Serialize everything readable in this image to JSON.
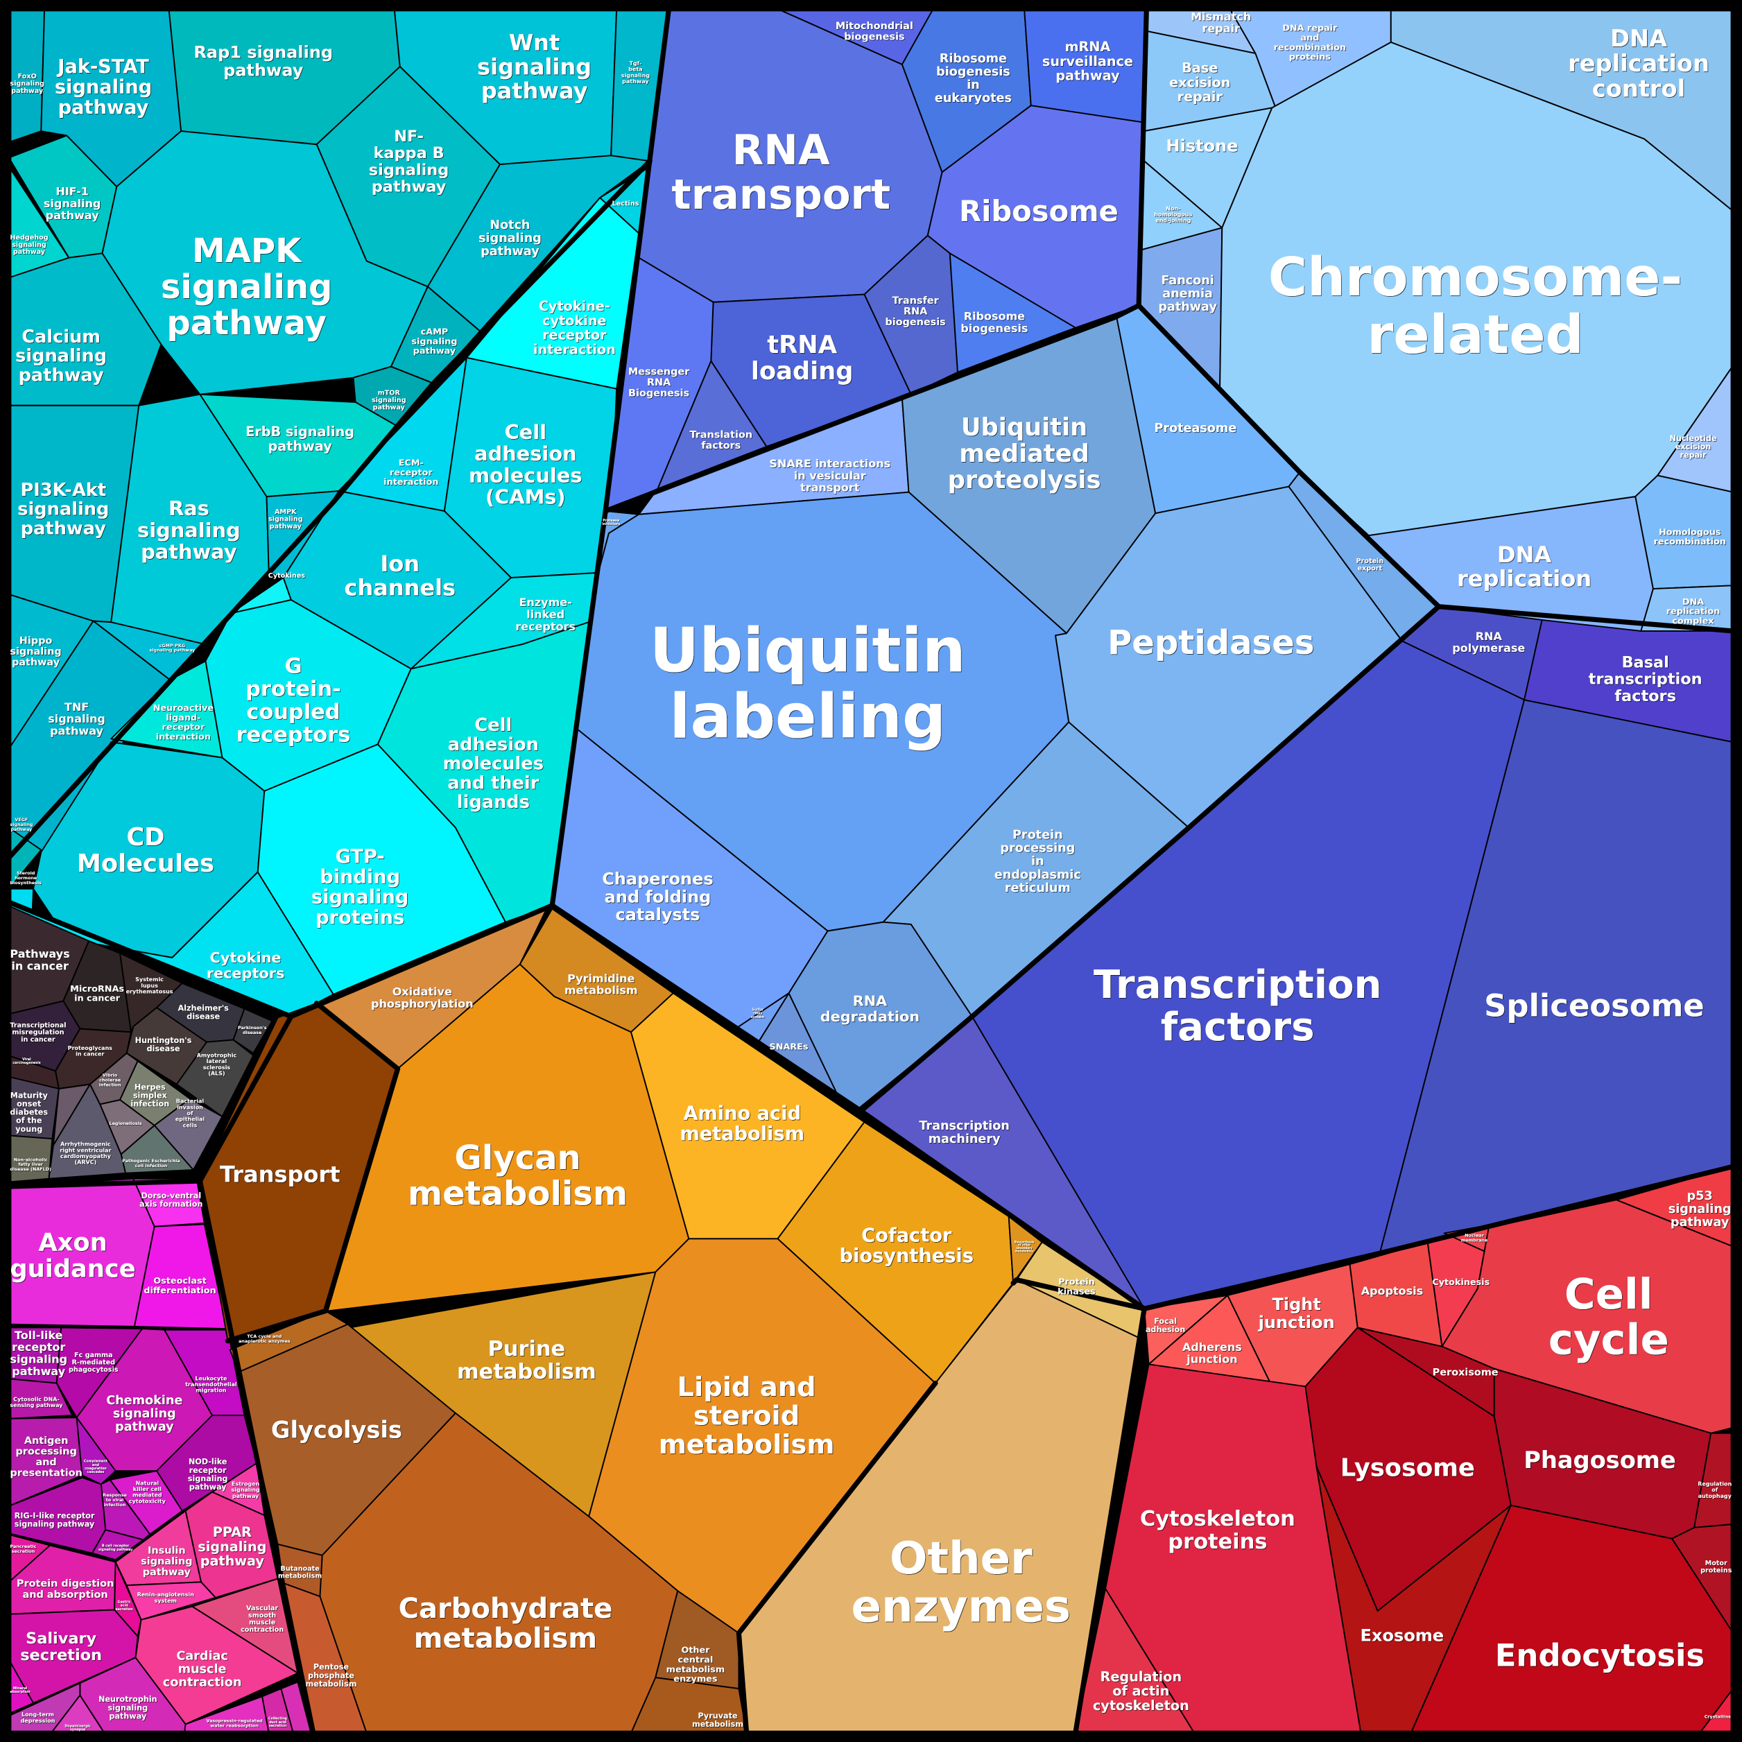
{
  "title": "KEGG pathway Voronoi treemap",
  "cells": {
    "foxo": "FoxO\nsignaling\npathway",
    "jak": "Jak-STAT\nsignaling\npathway",
    "rap1": "Rap1 signaling\npathway",
    "wnt": "Wnt\nsignaling\npathway",
    "tgf": "Tgf-\nbeta\nsignaling\npathway",
    "nfkb": "NF-\nkappa B\nsignaling\npathway",
    "mapk": "MAPK\nsignaling\npathway",
    "notch": "Notch\nsignaling\npathway",
    "lectins": "Lectins",
    "camp": "cAMP\nsignaling\npathway",
    "mtor": "mTOR\nsignaling\npathway",
    "hif": "HIF-1\nsignaling\npathway",
    "hedgehog": "Hedgehog\nsignaling\npathway",
    "calcium": "Calcium\nsignaling\npathway",
    "pi3k": "PI3K-Akt\nsignaling\npathway",
    "ras": "Ras\nsignaling\npathway",
    "erbb": "ErbB signaling\npathway",
    "ampk": "AMPK\nsignaling\npathway",
    "hippo": "Hippo\nsignaling\npathway",
    "tnf": "TNF\nsignaling\npathway",
    "cgmp": "cGMP-PKG\nsignaling pathway",
    "vegf": "VEGF\nsignaling\npathway",
    "cytcyt": "Cytokine-\ncytokine\nreceptor\ninteraction",
    "ecm": "ECM-\nreceptor\ninteraction",
    "cams": "Cell\nadhesion\nmolecules\n(CAMs)",
    "ion": "Ion\nchannels",
    "cytokines": "Cytokines",
    "enzlinked": "Enzyme-\nlinked\nreceptors",
    "gpcr": "G\nprotein-\ncoupled\nreceptors",
    "neuroactive": "Neuroactive\nligand-\nreceptor\ninteraction",
    "cd": "CD\nMolecules",
    "steroid": "Steroid\nhormone\nbiosynthesis",
    "camlig": "Cell\nadhesion\nmolecules\nand their\nligands",
    "gtp": "GTP-\nbinding\nsignaling\nproteins",
    "cytrec": "Cytokine\nreceptors",
    "pic": "Pathways\nin cancer",
    "mirna": "MicroRNAs\nin cancer",
    "sle": "Systemic\nlupus\nerythematosus",
    "tmis": "Transcriptional\nmisregulation\nin cancer",
    "viral": "Viral\ncarcinogenesis",
    "proteo": "Proteoglycans\nin cancer",
    "alz": "Alzheimer's\ndisease",
    "park": "Parkinson's\ndisease",
    "hunt": "Huntington's\ndisease",
    "als": "Amyotrophic\nlateral\nsclerosis\n(ALS)",
    "vibrio": "Vibrio\ncholerae\ninfection",
    "herpes": "Herpes\nsimplex\ninfection",
    "bact": "Bacterial\ninvasion\nof\nepithelial\ncells",
    "legio": "Legionellosis",
    "ecoli": "Pathogenic Escherichia\ncoli infection",
    "mody": "Maturity\nonset\ndiabetes\nof the\nyoung",
    "arvc": "Arrhythmogenic\nright ventricular\ncardiomyopathy\n(ARVC)",
    "nafld": "Non-alcoholic\nfatty liver\ndisease (NAFLD)",
    "axon": "Axon\nguidance",
    "dorso": "Dorso-ventral\naxis formation",
    "osteo": "Osteoclast\ndifferentiation",
    "toll": "Toll-like\nreceptor\nsignaling\npathway",
    "fc": "Fc gamma\nR-mediated\nphagocytosis",
    "chemokine": "Chemokine\nsignaling\npathway",
    "leuko": "Leukocyte\ntransendothelial\nmigration",
    "cytdna": "Cytosolic DNA-\nsensing pathway",
    "antigen": "Antigen\nprocessing\nand\npresentation",
    "complement": "Complement\nand\ncoagulation\ncascades",
    "nod": "NOD-like\nreceptor\nsignaling\npathway",
    "nk": "Natural\nkiller cell\nmediated\ncytotoxicity",
    "respviral": "Response\nto viral\ninfection",
    "rig": "RIG-I-like receptor\nsignaling pathway",
    "bcell": "B cell receptor\nsignaling pathway",
    "estrogen": "Estrogen\nsignaling\npathway",
    "ppar": "PPAR\nsignaling\npathway",
    "insulin": "Insulin\nsignaling\npathway",
    "renin": "Renin-angiotensin\nsystem",
    "pancreatic": "Pancreatic\nsecretion",
    "protdig": "Protein digestion\nand absorption",
    "gastric": "Gastric\nacid\nsecretion",
    "salivary": "Salivary\nsecretion",
    "mineral": "Mineral\nabsorption",
    "vascular": "Vascular\nsmooth\nmuscle\ncontraction",
    "cardiac": "Cardiac\nmuscle\ncontraction",
    "neurotrophin": "Neurotrophin\nsignaling\npathway",
    "ltd": "Long-term\ndepression",
    "dopa": "Dopaminergic\nsynapse",
    "vaso": "Vasopressin-regulated\nwater reabsorption",
    "collecting": "Collecting\nduct acid\nsecretion",
    "transport": "Transport",
    "oxphos": "Oxidative\nphosphorylation",
    "pyrimidine": "Pyrimidine\nmetabolism",
    "glycan": "Glycan\nmetabolism",
    "amino": "Amino acid\nmetabolism",
    "cofactor": "Cofactor\nbiosynthesis",
    "biosec": "Biosynthesis\nof other\nsecondary\nmetabolites",
    "pkinases": "Protein\nkinases",
    "otherenz": "Other\nenzymes",
    "lipid": "Lipid and\nsteroid\nmetabolism",
    "purine": "Purine\nmetabolism",
    "tca": "TCA cycle and\nanaplerotic enzymes",
    "glycolysis": "Glycolysis",
    "carbo": "Carbohydrate\nmetabolism",
    "butanoate": "Butanoate\nmetabolism",
    "pentose": "Pentose\nphosphate\nmetabolism",
    "othercentral": "Other\ncentral\nmetabolism\nenzymes",
    "pyruvate": "Pyruvate\nmetabolism",
    "rnatransport": "RNA\ntransport",
    "mito": "Mitochondrial\nbiogenesis",
    "ribobioeuk": "Ribosome\nbiogenesis\nin\neukaryotes",
    "mrnasurv": "mRNA\nsurveillance\npathway",
    "ribosome": "Ribosome",
    "trnabio": "Transfer\nRNA\nbiogenesis",
    "ribobio": "Ribosome\nbiogenesis",
    "trna": "tRNA\nloading",
    "mrnabio": "Messenger\nRNA\nBiogenesis",
    "transl": "Translation\nfactors",
    "snareint": "SNARE interactions\nin vesicular\ntransport",
    "protinh": "Protease\ninhibitors",
    "ubmed": "Ubiquitin\nmediated\nproteolysis",
    "proteasome": "Proteasome",
    "protexport": "Protein\nexport",
    "peptidases": "Peptidases",
    "ublab": "Ubiquitin\nlabeling",
    "chaperones": "Chaperones\nand folding\ncatalysts",
    "protproc": "Protein\nprocessing\nin\nendoplasmic\nreticulum",
    "rnadeg": "RNA\ndegradation",
    "snares": "SNAREs",
    "sulfur": "Sulfur\nrelay\nsystem",
    "rnapol": "RNA\npolymerase",
    "basal": "Basal\ntranscription\nfactors",
    "tf": "Transcription\nfactors",
    "spliceosome": "Spliceosome",
    "tmach": "Transcription\nmachinery",
    "mismatch": "Mismatch\nrepair",
    "dnarepair": "DNA repair\nand\nrecombination\nproteins",
    "ber": "Base\nexcision\nrepair",
    "histone": "Histone",
    "nhej": "Non-\nhomologous\nend-joining",
    "fanconi": "Fanconi\nanemia\npathway",
    "chromosome": "Chromosome-\nrelated",
    "dnarepctl": "DNA\nreplication\ncontrol",
    "ner": "Nucleotide\nexcision\nrepair",
    "homrec": "Homologous\nrecombination",
    "dnarepcx": "DNA\nreplication\ncomplex",
    "dnarep": "DNA\nreplication",
    "focal": "Focal\nadhesion",
    "adherens": "Adherens\njunction",
    "tight": "Tight\njunction",
    "apoptosis": "Apoptosis",
    "cytokinesis": "Cytokinesis",
    "nucmem": "Nuclear\nmembrane",
    "cellcycle": "Cell\ncycle",
    "p53": "p53\nsignaling\npathway",
    "peroxisome": "Peroxisome",
    "lysosome": "Lysosome",
    "phagosome": "Phagosome",
    "regauto": "Regulation\nof\nautophagy",
    "motor": "Motor\nproteins",
    "cytoskel": "Cytoskeleton\nproteins",
    "regactin": "Regulation\nof actin\ncytoskeleton",
    "exosome": "Exosome",
    "endocytosis": "Endocytosis",
    "crystallins": "Crystallins"
  }
}
